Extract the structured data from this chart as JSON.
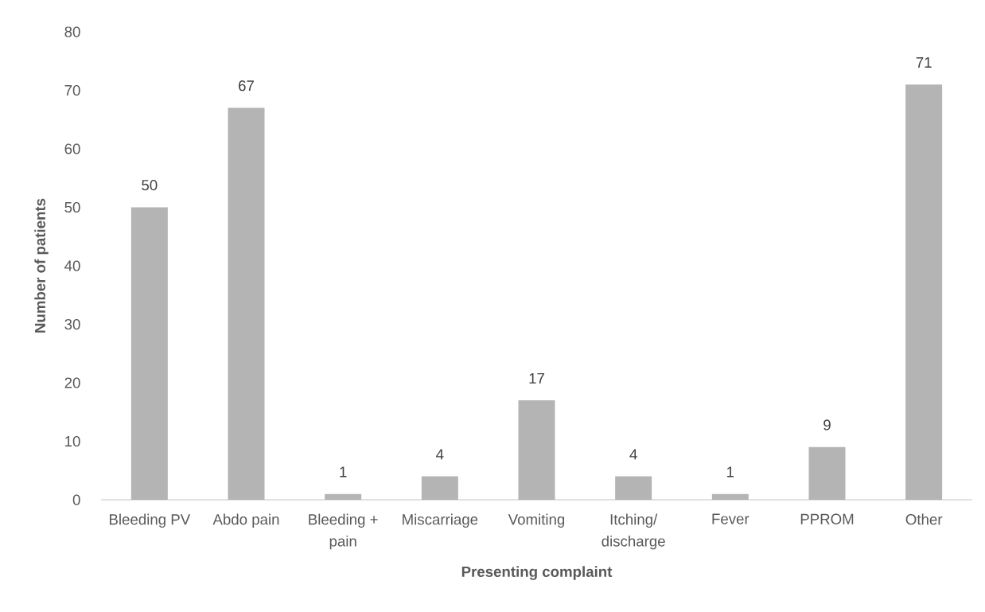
{
  "chart_data": {
    "type": "bar",
    "xlabel": "Presenting complaint",
    "ylabel": "Number of patients",
    "categories": [
      "Bleeding PV",
      "Abdo pain",
      "Bleeding + pain",
      "Miscarriage",
      "Vomiting",
      "Itching/ discharge",
      "Fever",
      "PPROM",
      "Other"
    ],
    "values": [
      50,
      67,
      1,
      4,
      17,
      4,
      1,
      9,
      71
    ],
    "color": "#b4b4b4",
    "ylim": [
      0,
      80
    ],
    "yticks": [
      0,
      10,
      20,
      30,
      40,
      50,
      60,
      70,
      80
    ],
    "data_labels": true
  }
}
